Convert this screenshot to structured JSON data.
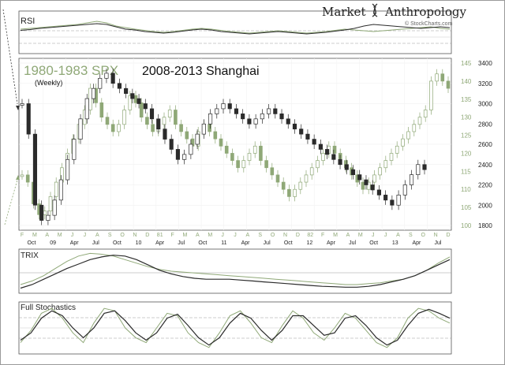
{
  "branding": {
    "title_part1": "Market",
    "title_part2": "Anthropology",
    "logo_icon": "dna-helix-icon",
    "watermark": "© StockCharts.com"
  },
  "colors": {
    "spx": "#8fa877",
    "shanghai": "#2b2b2b",
    "frame": "#555555",
    "grid": "#dddddd"
  },
  "chart_data": [
    {
      "type": "line",
      "panel": "rsi",
      "title": "RSI",
      "grid": true,
      "ylim": [
        0,
        100
      ],
      "reference_lines": [
        70,
        50,
        30
      ],
      "series": [
        {
          "values": [
            58,
            60,
            62,
            64,
            66,
            68,
            70,
            74,
            78,
            74,
            66,
            62,
            58,
            55,
            52,
            50,
            52,
            55,
            58,
            60,
            58,
            55,
            52,
            50,
            48,
            50,
            52,
            54,
            52,
            50,
            48,
            50,
            52,
            55,
            58,
            56,
            54,
            52,
            54,
            56,
            58,
            60,
            62,
            64,
            60,
            58
          ]
        },
        {
          "values": [
            55,
            57,
            60,
            62,
            64,
            66,
            68,
            70,
            72,
            70,
            64,
            58,
            56,
            52,
            50,
            48,
            50,
            53,
            56,
            58,
            56,
            52,
            50,
            48,
            46,
            48,
            50,
            52,
            50,
            48,
            46,
            48,
            50,
            53,
            56,
            60,
            66,
            70,
            68,
            66,
            64,
            62,
            60,
            62,
            64,
            62
          ]
        }
      ]
    },
    {
      "type": "line",
      "panel": "price",
      "title": "1980-1983 SPX",
      "title2": "2008-2013 Shanghai",
      "subtitle": "(Weekly)",
      "left_ticks": [
        "F",
        "M",
        "A",
        "M",
        "J",
        "J",
        "A",
        "S",
        "O",
        "N",
        "D",
        "81",
        "F",
        "M",
        "A",
        "M",
        "J",
        "J",
        "A",
        "S",
        "O",
        "N",
        "D",
        "82",
        "F",
        "M",
        "A",
        "M",
        "J",
        "J",
        "A",
        "S",
        "O",
        "N",
        "D"
      ],
      "bottom_ticks": [
        "Oct",
        "09",
        "Apr",
        "Jul",
        "Oct",
        "10",
        "Apr",
        "Jul",
        "Oct",
        "11",
        "Apr",
        "Jul",
        "Oct",
        "12",
        "Apr",
        "Jul",
        "Oct",
        "13",
        "Apr",
        "Jul"
      ],
      "spx_axis": {
        "label": "SPX",
        "ylim": [
          100,
          145
        ],
        "ticks": [
          100,
          105,
          110,
          115,
          120,
          125,
          130,
          135,
          140,
          145
        ]
      },
      "shanghai_axis": {
        "label": "Shanghai",
        "ylim": [
          1800,
          3400
        ],
        "ticks": [
          1800,
          2000,
          2200,
          2400,
          2600,
          2800,
          3000,
          3200,
          3400
        ]
      },
      "series": [
        {
          "values": [
            114,
            112,
            106,
            103,
            104,
            108,
            112,
            116,
            120,
            124,
            128,
            132,
            138,
            134,
            130,
            128,
            126,
            128,
            132,
            136,
            134,
            130,
            128,
            126,
            128,
            130,
            132,
            128,
            126,
            124,
            122,
            126,
            128,
            126,
            124,
            122,
            120,
            118,
            116,
            118,
            120,
            122,
            118,
            116,
            114,
            112,
            110,
            108,
            110,
            112,
            114,
            116,
            118,
            120,
            122,
            120,
            118,
            116,
            114,
            112,
            110,
            112,
            114,
            116,
            118,
            120,
            122,
            124,
            126,
            128,
            130,
            132,
            140,
            142,
            140,
            138
          ]
        },
        {
          "values": [
            3000,
            2700,
            2000,
            1850,
            1900,
            2050,
            2250,
            2450,
            2650,
            2850,
            3050,
            3150,
            3250,
            3300,
            3200,
            3150,
            3100,
            3050,
            3000,
            2950,
            2850,
            2750,
            2650,
            2550,
            2450,
            2500,
            2600,
            2700,
            2800,
            2900,
            2950,
            3000,
            2950,
            2900,
            2850,
            2800,
            2850,
            2900,
            2950,
            2900,
            2850,
            2800,
            2750,
            2700,
            2650,
            2600,
            2550,
            2500,
            2450,
            2400,
            2350,
            2300,
            2250,
            2200,
            2150,
            2100,
            2050,
            2000,
            2100,
            2200,
            2300,
            2400,
            2350
          ]
        }
      ]
    },
    {
      "type": "line",
      "panel": "trix",
      "title": "TRIX",
      "grid": true,
      "reference_lines": [
        0
      ],
      "series": [
        {
          "values": [
            -0.6,
            -0.4,
            -0.1,
            0.3,
            0.7,
            1.0,
            1.15,
            1.1,
            1.0,
            0.8,
            0.6,
            0.4,
            0.25,
            0.15,
            0.1,
            0.05,
            0.0,
            -0.05,
            -0.1,
            -0.15,
            -0.2,
            -0.25,
            -0.3,
            -0.35,
            -0.4,
            -0.45,
            -0.5,
            -0.55,
            -0.6,
            -0.6,
            -0.55,
            -0.5,
            -0.4,
            -0.3,
            -0.1,
            0.2,
            0.6,
            0.95
          ]
        },
        {
          "values": [
            -0.8,
            -0.6,
            -0.3,
            0.0,
            0.3,
            0.55,
            0.8,
            0.95,
            1.05,
            1.0,
            0.8,
            0.5,
            0.2,
            0.0,
            -0.15,
            -0.25,
            -0.3,
            -0.3,
            -0.3,
            -0.35,
            -0.4,
            -0.45,
            -0.5,
            -0.55,
            -0.6,
            -0.65,
            -0.7,
            -0.72,
            -0.75,
            -0.75,
            -0.7,
            -0.6,
            -0.45,
            -0.3,
            -0.1,
            0.2,
            0.5,
            0.8
          ]
        }
      ]
    },
    {
      "type": "line",
      "panel": "stochastics",
      "title": "Full Stochastics",
      "grid": true,
      "ylim": [
        0,
        100
      ],
      "reference_lines": [
        80,
        50,
        20
      ],
      "series": [
        {
          "values": [
            20,
            45,
            80,
            90,
            70,
            40,
            20,
            60,
            90,
            85,
            50,
            30,
            20,
            50,
            80,
            75,
            40,
            20,
            10,
            40,
            75,
            85,
            60,
            30,
            20,
            55,
            85,
            70,
            40,
            25,
            50,
            80,
            70,
            45,
            20,
            10,
            30,
            70,
            90,
            85,
            70,
            60
          ]
        },
        {
          "values": [
            25,
            40,
            70,
            85,
            75,
            50,
            30,
            50,
            80,
            85,
            65,
            40,
            25,
            40,
            70,
            78,
            55,
            30,
            15,
            30,
            60,
            80,
            70,
            45,
            25,
            45,
            75,
            75,
            55,
            35,
            40,
            70,
            75,
            55,
            30,
            15,
            25,
            55,
            80,
            88,
            80,
            70
          ]
        }
      ]
    }
  ]
}
